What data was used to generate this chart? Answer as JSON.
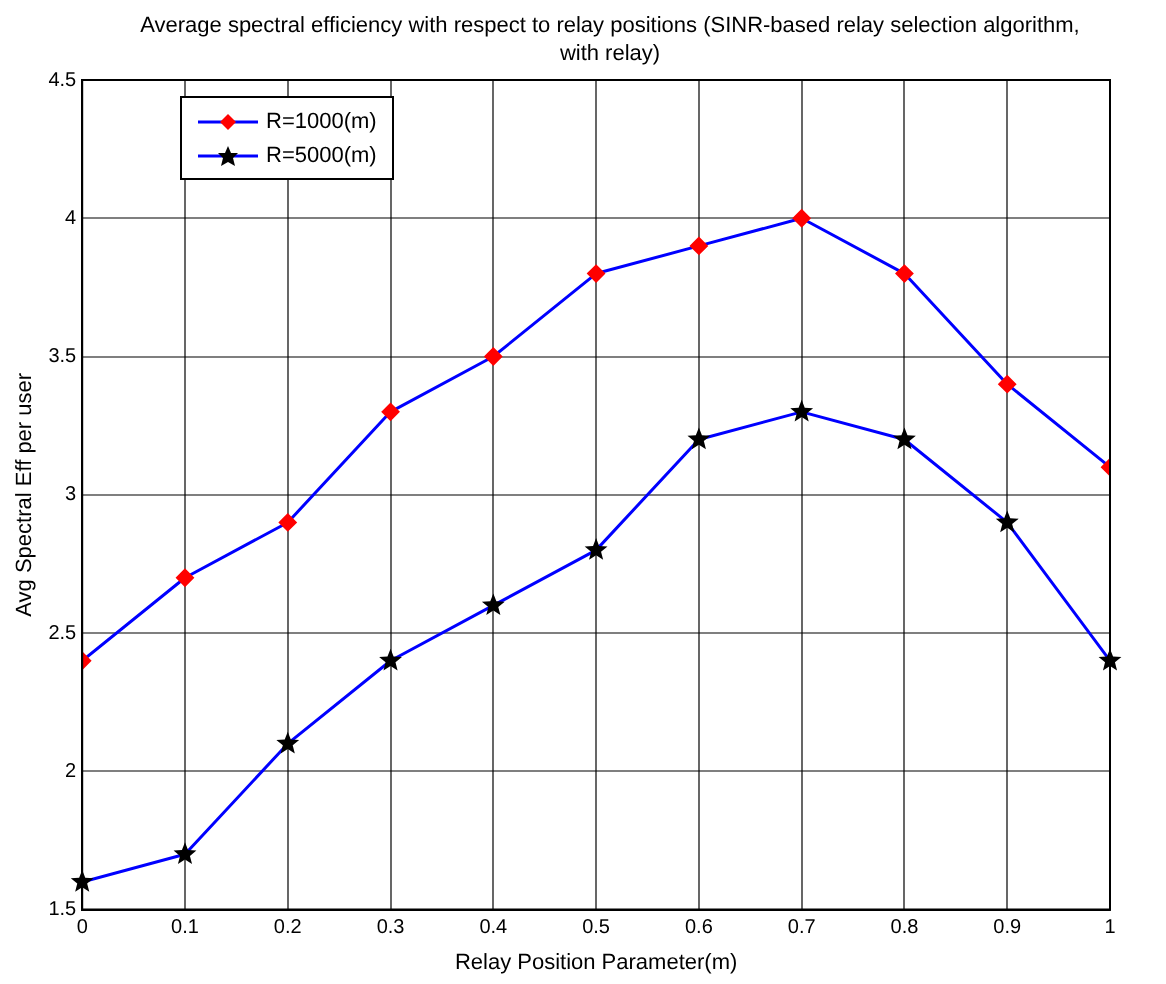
{
  "chart_data": {
    "type": "line",
    "title": "Average spectral efficiency with respect to relay positions (SINR-based relay selection algorithm, with relay)",
    "xlabel": "Relay Position Parameter(m)",
    "ylabel": "Avg Spectral Eff per user",
    "x": [
      0,
      0.1,
      0.2,
      0.3,
      0.4,
      0.5,
      0.6,
      0.7,
      0.8,
      0.9,
      1
    ],
    "series": [
      {
        "name": "R=1000(m)",
        "color": "#0000ff",
        "marker": "diamond",
        "values": [
          2.4,
          2.7,
          2.9,
          3.3,
          3.5,
          3.8,
          3.9,
          4.0,
          3.8,
          3.4,
          3.1
        ]
      },
      {
        "name": "R=5000(m)",
        "color": "#0000ff",
        "marker": "star",
        "values": [
          1.6,
          1.7,
          2.1,
          2.4,
          2.6,
          2.8,
          3.2,
          3.3,
          3.2,
          2.9,
          2.4
        ]
      }
    ],
    "xlim": [
      0,
      1
    ],
    "xticks": [
      0,
      0.1,
      0.2,
      0.3,
      0.4,
      0.5,
      0.6,
      0.7,
      0.8,
      0.9,
      1
    ],
    "ylim": [
      1.5,
      4.5
    ],
    "yticks": [
      1.5,
      2,
      2.5,
      3,
      3.5,
      4,
      4.5
    ],
    "grid": true,
    "legend": "top left",
    "line_style": "solid"
  }
}
